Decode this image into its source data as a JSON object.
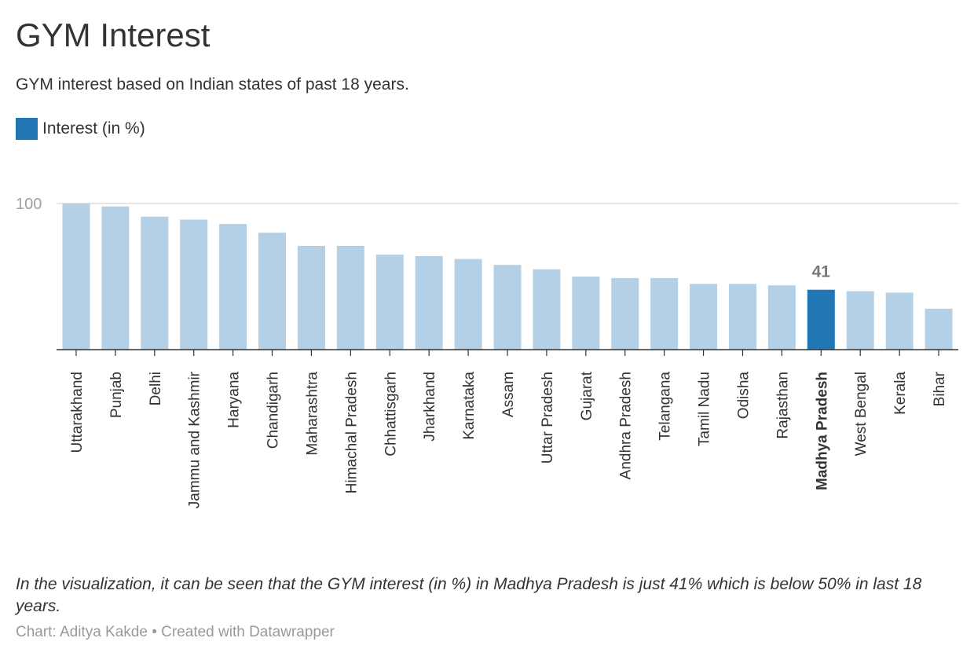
{
  "header": {
    "title": "GYM Interest",
    "subtitle": "GYM interest based on Indian states of past 18 years."
  },
  "legend": {
    "label": "Interest (in %)",
    "color": "#2077b4"
  },
  "colors": {
    "bar": "#b3d0e6",
    "highlight": "#2077b4",
    "gridline": "#dddddd",
    "axis": "#333333"
  },
  "chart_data": {
    "type": "bar",
    "categories": [
      "Uttarakhand",
      "Punjab",
      "Delhi",
      "Jammu and Kashmir",
      "Haryana",
      "Chandigarh",
      "Maharashtra",
      "Himachal Pradesh",
      "Chhattisgarh",
      "Jharkhand",
      "Karnataka",
      "Assam",
      "Uttar Pradesh",
      "Gujarat",
      "Andhra Pradesh",
      "Telangana",
      "Tamil Nadu",
      "Odisha",
      "Rajasthan",
      "Madhya Pradesh",
      "West Bengal",
      "Kerala",
      "Bihar"
    ],
    "series": [
      {
        "name": "Interest (in %)",
        "values": [
          100,
          98,
          91,
          89,
          86,
          80,
          71,
          71,
          65,
          64,
          62,
          58,
          55,
          50,
          49,
          49,
          45,
          45,
          44,
          41,
          40,
          39,
          28
        ]
      }
    ],
    "highlight": {
      "category": "Madhya Pradesh",
      "label": "41"
    },
    "y_ticks": [
      100
    ],
    "ylim": [
      0,
      100
    ],
    "grid": true,
    "legend_position": "top-left"
  },
  "note": "In the visualization, it can be seen that the GYM interest (in %) in Madhya Pradesh is just 41% which is below 50% in last 18 years.",
  "footer": "Chart: Aditya Kakde • Created with Datawrapper"
}
